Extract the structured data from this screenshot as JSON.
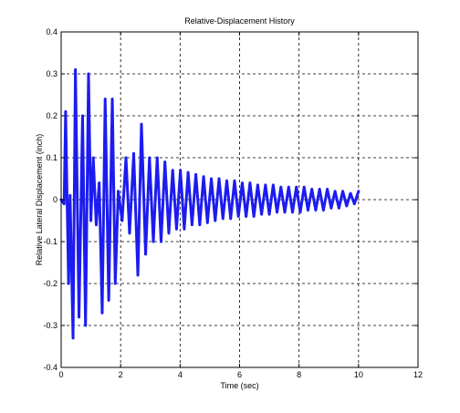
{
  "chart_data": {
    "type": "line",
    "title": "Relative-Displacement History",
    "xlabel": "Time (sec)",
    "ylabel": "Relative Lateral Displacement (inch)",
    "xlim": [
      0,
      12
    ],
    "ylim": [
      -0.4,
      0.4
    ],
    "xticks": [
      "0",
      "2",
      "4",
      "6",
      "8",
      "10",
      "12"
    ],
    "yticks": [
      "0.4",
      "0.3",
      "0.2",
      "0.1",
      "0",
      "-0.1",
      "-0.2",
      "-0.3",
      "-0.4"
    ],
    "grid": true,
    "grid_style": "dashed",
    "series": [
      {
        "color": "#1c1cf0",
        "x": [
          0.0,
          0.1,
          0.15,
          0.2,
          0.25,
          0.3,
          0.4,
          0.48,
          0.6,
          0.72,
          0.82,
          0.92,
          1.0,
          1.08,
          1.18,
          1.28,
          1.38,
          1.48,
          1.6,
          1.72,
          1.82,
          1.92,
          2.05,
          2.18,
          2.3,
          2.44,
          2.58,
          2.7,
          2.84,
          2.97,
          3.1,
          3.23,
          3.36,
          3.49,
          3.62,
          3.75,
          3.88,
          4.01,
          4.14,
          4.27,
          4.4,
          4.53,
          4.66,
          4.79,
          4.92,
          5.05,
          5.18,
          5.31,
          5.44,
          5.57,
          5.7,
          5.83,
          5.96,
          6.09,
          6.22,
          6.35,
          6.48,
          6.61,
          6.74,
          6.87,
          7.0,
          7.13,
          7.26,
          7.39,
          7.52,
          7.65,
          7.78,
          7.91,
          8.04,
          8.17,
          8.3,
          8.43,
          8.56,
          8.69,
          8.82,
          8.95,
          9.08,
          9.21,
          9.34,
          9.47,
          9.6,
          9.73,
          9.86,
          10.0
        ],
        "y": [
          0.0,
          -0.01,
          0.21,
          0.0,
          -0.2,
          0.01,
          -0.33,
          0.31,
          -0.28,
          0.2,
          -0.3,
          0.3,
          -0.05,
          0.1,
          -0.06,
          0.04,
          -0.27,
          0.24,
          -0.24,
          0.24,
          -0.2,
          0.02,
          -0.05,
          0.1,
          -0.08,
          0.11,
          -0.18,
          0.18,
          -0.13,
          0.1,
          -0.1,
          0.1,
          -0.1,
          0.09,
          -0.08,
          0.07,
          -0.07,
          0.07,
          -0.07,
          0.065,
          -0.06,
          0.06,
          -0.06,
          0.055,
          -0.055,
          0.05,
          -0.05,
          0.05,
          -0.045,
          0.045,
          -0.045,
          0.045,
          -0.04,
          0.04,
          -0.04,
          0.04,
          -0.04,
          0.035,
          -0.035,
          0.035,
          -0.035,
          0.035,
          -0.03,
          0.03,
          -0.03,
          0.03,
          -0.03,
          0.03,
          -0.03,
          0.03,
          -0.025,
          0.025,
          -0.025,
          0.025,
          -0.025,
          0.025,
          -0.02,
          0.02,
          -0.02,
          0.02,
          -0.015,
          0.015,
          -0.01,
          0.02
        ]
      }
    ]
  }
}
